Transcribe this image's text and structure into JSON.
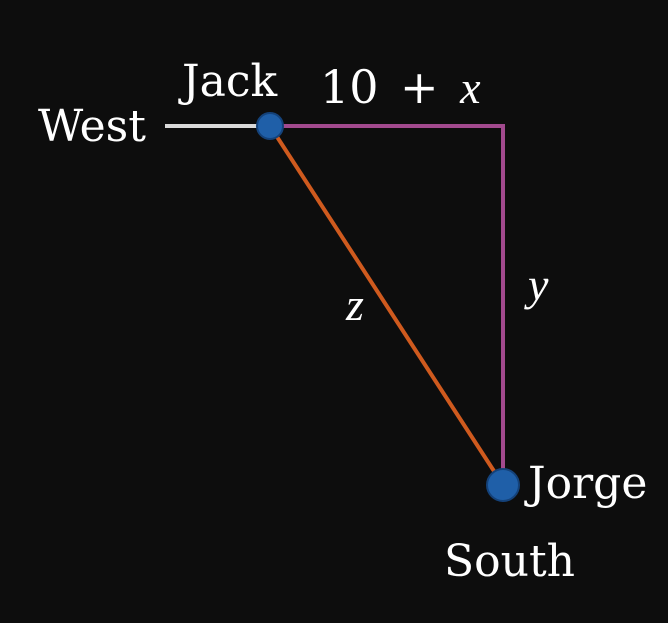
{
  "labels": {
    "west": "West",
    "south": "South",
    "jack": "Jack",
    "jorge": "Jorge"
  },
  "math": {
    "top_num": "10",
    "top_plus": "+",
    "top_var": "x",
    "vertical_var": "y",
    "hyp_var": "z"
  },
  "colors": {
    "background": "#0d0d0d",
    "west_segment": "#d9d9d9",
    "path_segment": "#a24a8e",
    "hypotenuse": "#cf5a1e",
    "point_fill": "#1f5fa8",
    "point_stroke": "#14427a",
    "text": "#ffffff"
  }
}
